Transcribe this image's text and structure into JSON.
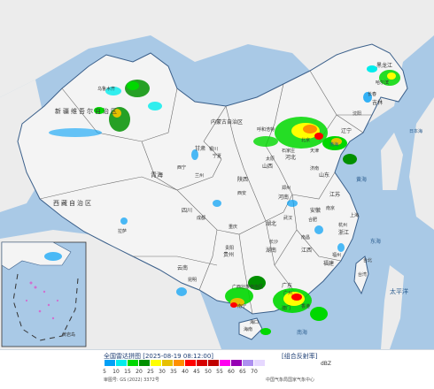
{
  "colors": {
    "sea": "#a9c9e6",
    "land_outside": "#ececec",
    "china_land": "#f4f4f4",
    "border": "#6b6b6b",
    "coast": "#3a5f8a"
  },
  "map_labels": {
    "xinjiang": "新疆维吾尔自治区",
    "urumqi": "乌鲁木齐",
    "xizang": "西藏自治区",
    "lhasa": "拉萨",
    "qinghai": "青海",
    "xining": "西宁",
    "gansu": "甘肃",
    "lanzhou": "兰州",
    "neimenggu": "内蒙古自治区",
    "huhehaote": "呼和浩特",
    "ningxia": "宁夏",
    "yinchuan": "银川",
    "shaanxi": "陕西",
    "xian": "西安",
    "shanxi": "山西",
    "taiyuan": "太原",
    "hebei": "河北",
    "beijing": "北京",
    "tianjin": "天津",
    "shijiazhuang": "石家庄",
    "liaoning": "辽宁",
    "shenyang": "沈阳",
    "jilin": "吉林",
    "changchun": "长春",
    "heilongjiang": "黑龙江",
    "haerbin": "哈尔滨",
    "shandong": "山东",
    "jinan": "济南",
    "henan": "河南",
    "zhengzhou": "郑州",
    "jiangsu": "江苏",
    "nanjing": "南京",
    "shanghai": "上海",
    "anhui": "安徽",
    "hefei": "合肥",
    "zhejiang": "浙江",
    "hangzhou": "杭州",
    "hubei": "湖北",
    "wuhan": "武汉",
    "sichuan": "四川",
    "chengdu": "成都",
    "chongqing": "重庆",
    "hunan": "湖南",
    "changsha": "长沙",
    "jiangxi": "江西",
    "nanchang": "南昌",
    "fujian": "福建",
    "fuzhou": "福州",
    "guizhou": "贵州",
    "guiyang": "贵阳",
    "yunnan": "云南",
    "kunming": "昆明",
    "guangxi": "广西壮族自治区",
    "nanning": "南宁",
    "guangdong": "广东",
    "guangzhou": "广州",
    "hongkong": "香港",
    "macau": "澳门",
    "taiwan": "台湾",
    "taibei": "台北",
    "hainan": "海南",
    "haikou": "海口",
    "bohai": "渤海",
    "huanghai": "黄海",
    "donghai": "东海",
    "nanhai": "南海",
    "taipingyang": "太平洋",
    "riben": "日本海",
    "huangyan": "黄岩岛"
  },
  "legend": {
    "title": "全国雷达拼图 [2025-08-19 08:12:00]",
    "product": "[组合反射率]",
    "unit": "dBZ",
    "ticks": [
      "5",
      "10",
      "15",
      "20",
      "25",
      "30",
      "35",
      "40",
      "45",
      "50",
      "55",
      "60",
      "65",
      "70"
    ],
    "colors": [
      "#01a0f6",
      "#00ecec",
      "#00d800",
      "#019000",
      "#ffff00",
      "#e7c000",
      "#ff9000",
      "#ff0000",
      "#d60000",
      "#c00000",
      "#ff00f0",
      "#9600b4",
      "#ad90f0",
      "#e6d8ff"
    ],
    "map_review": "审图号: GS (2022) 3372号",
    "producer": "中国气象局国家气象中心"
  }
}
